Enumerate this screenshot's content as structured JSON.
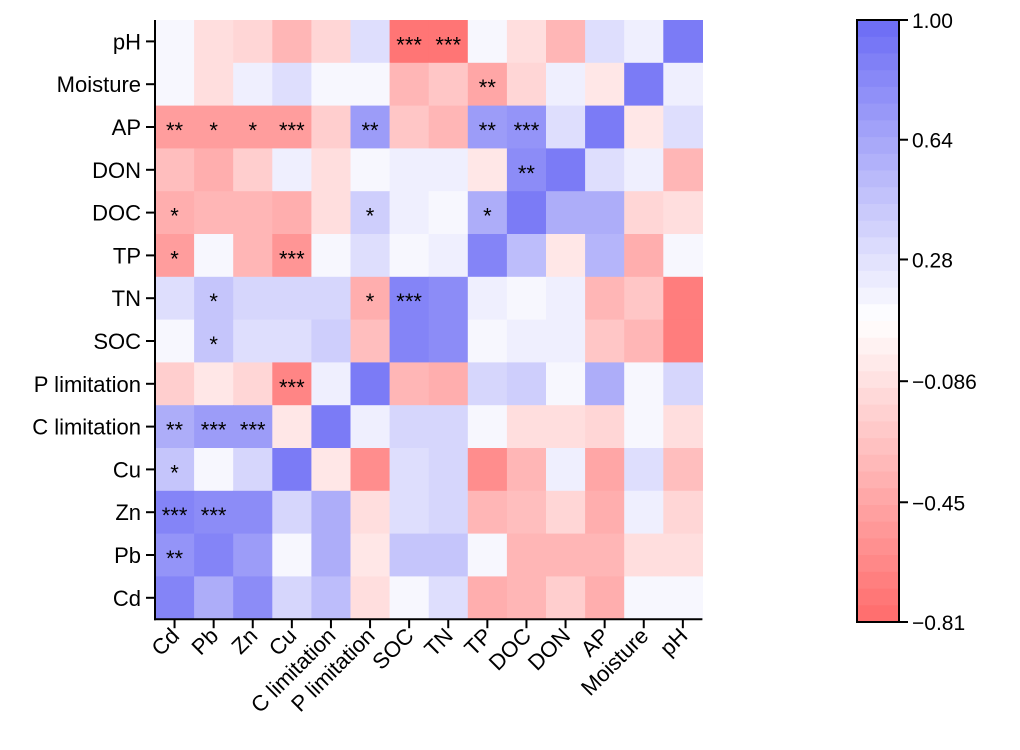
{
  "chart_data": {
    "type": "heatmap",
    "title": "",
    "xlabel": "",
    "ylabel": "",
    "x_categories": [
      "Cd",
      "Pb",
      "Zn",
      "Cu",
      "C limitation",
      "P limitation",
      "SOC",
      "TN",
      "TP",
      "DOC",
      "DON",
      "AP",
      "Moisture",
      "pH"
    ],
    "y_categories": [
      "pH",
      "Moisture",
      "AP",
      "DON",
      "DOC",
      "TP",
      "TN",
      "SOC",
      "P limitation",
      "C limitation",
      "Cu",
      "Zn",
      "Pb",
      "Cd"
    ],
    "values": [
      [
        0.15,
        -0.1,
        -0.15,
        -0.35,
        -0.15,
        0.3,
        -0.75,
        -0.75,
        0.15,
        -0.1,
        -0.35,
        0.3,
        0.2,
        0.9
      ],
      [
        0.15,
        -0.1,
        0.2,
        0.3,
        0.15,
        0.15,
        -0.35,
        -0.25,
        -0.45,
        -0.15,
        0.2,
        -0.05,
        0.9,
        0.2
      ],
      [
        -0.5,
        -0.5,
        -0.5,
        -0.5,
        -0.2,
        0.7,
        -0.25,
        -0.35,
        0.7,
        0.75,
        0.3,
        0.9,
        -0.05,
        0.3
      ],
      [
        -0.3,
        -0.4,
        -0.2,
        0.2,
        -0.1,
        0.15,
        0.2,
        0.2,
        -0.05,
        0.8,
        0.9,
        0.3,
        0.2,
        -0.35
      ],
      [
        -0.4,
        -0.35,
        -0.35,
        -0.4,
        -0.1,
        0.4,
        0.2,
        0.15,
        0.6,
        0.9,
        0.6,
        0.6,
        -0.15,
        -0.1
      ],
      [
        -0.5,
        0.15,
        -0.35,
        -0.55,
        0.15,
        0.3,
        0.15,
        0.2,
        0.85,
        0.5,
        -0.05,
        0.55,
        -0.4,
        0.15
      ],
      [
        0.3,
        0.45,
        0.35,
        0.35,
        0.35,
        -0.4,
        0.85,
        0.8,
        0.2,
        0.15,
        0.2,
        -0.35,
        -0.25,
        -0.7
      ],
      [
        0.15,
        0.45,
        0.3,
        0.3,
        0.4,
        -0.3,
        0.85,
        0.8,
        0.15,
        0.2,
        0.2,
        -0.25,
        -0.35,
        -0.7
      ],
      [
        -0.2,
        -0.05,
        -0.15,
        -0.65,
        0.2,
        0.9,
        -0.35,
        -0.4,
        0.35,
        0.4,
        0.15,
        0.6,
        0.15,
        0.35
      ],
      [
        0.6,
        0.7,
        0.7,
        -0.05,
        0.9,
        0.2,
        0.35,
        0.35,
        0.15,
        -0.1,
        -0.1,
        -0.15,
        0.15,
        -0.1
      ],
      [
        0.45,
        0.15,
        0.35,
        0.9,
        -0.05,
        -0.6,
        0.3,
        0.35,
        -0.6,
        -0.35,
        0.2,
        -0.45,
        0.3,
        -0.3
      ],
      [
        0.85,
        0.8,
        0.8,
        0.35,
        0.6,
        -0.1,
        0.3,
        0.35,
        -0.35,
        -0.3,
        -0.15,
        -0.4,
        0.2,
        -0.15
      ],
      [
        0.75,
        0.85,
        0.7,
        0.15,
        0.6,
        -0.05,
        0.45,
        0.45,
        0.15,
        -0.35,
        -0.35,
        -0.35,
        -0.1,
        -0.1
      ],
      [
        0.85,
        0.6,
        0.8,
        0.35,
        0.5,
        -0.1,
        0.15,
        0.3,
        -0.4,
        -0.35,
        -0.2,
        -0.4,
        0.15,
        0.15
      ]
    ],
    "significance": [
      [
        "",
        "",
        "",
        "",
        "",
        "",
        "***",
        "***",
        "",
        "",
        "",
        "",
        "",
        ""
      ],
      [
        "",
        "",
        "",
        "",
        "",
        "",
        "",
        "",
        "**",
        "",
        "",
        "",
        "",
        ""
      ],
      [
        "**",
        "*",
        "*",
        "***",
        "",
        "**",
        "",
        "",
        "**",
        "***",
        "",
        "",
        "",
        ""
      ],
      [
        "",
        "",
        "",
        "",
        "",
        "",
        "",
        "",
        "",
        "**",
        "",
        "",
        "",
        ""
      ],
      [
        "*",
        "",
        "",
        "",
        "",
        "*",
        "",
        "",
        "*",
        "",
        "",
        "",
        "",
        ""
      ],
      [
        "*",
        "",
        "",
        "***",
        "",
        "",
        "",
        "",
        "",
        "",
        "",
        "",
        "",
        ""
      ],
      [
        "",
        "*",
        "",
        "",
        "",
        "*",
        "***",
        "",
        "",
        "",
        "",
        "",
        "",
        ""
      ],
      [
        "",
        "*",
        "",
        "",
        "",
        "",
        "",
        "",
        "",
        "",
        "",
        "",
        "",
        ""
      ],
      [
        "",
        "",
        "",
        "***",
        "",
        "",
        "",
        "",
        "",
        "",
        "",
        "",
        "",
        ""
      ],
      [
        "**",
        "***",
        "***",
        "",
        "",
        "",
        "",
        "",
        "",
        "",
        "",
        "",
        "",
        ""
      ],
      [
        "*",
        "",
        "",
        "",
        "",
        "",
        "",
        "",
        "",
        "",
        "",
        "",
        "",
        ""
      ],
      [
        "***",
        "***",
        "",
        "",
        "",
        "",
        "",
        "",
        "",
        "",
        "",
        "",
        "",
        ""
      ],
      [
        "**",
        "",
        "",
        "",
        "",
        "",
        "",
        "",
        "",
        "",
        "",
        "",
        "",
        ""
      ],
      [
        "",
        "",
        "",
        "",
        "",
        "",
        "",
        "",
        "",
        "",
        "",
        "",
        "",
        ""
      ]
    ],
    "colorbar": {
      "min": -0.81,
      "max": 1.0,
      "center": 0.1,
      "tick_values": [
        1.0,
        0.64,
        0.28,
        -0.086,
        -0.45,
        -0.81
      ],
      "tick_labels": [
        "1.00",
        "0.64",
        "0.28",
        "−0.086",
        "−0.45",
        "−0.81"
      ],
      "color_low": "#ff6b6b",
      "color_mid": "#ffffff",
      "color_high": "#6b6bf5"
    },
    "grid": false,
    "legend": "colorbar-right"
  }
}
